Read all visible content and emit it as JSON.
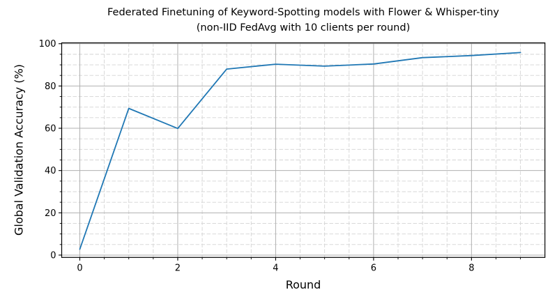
{
  "figure": {
    "title_line1": "Federated Finetuning of Keyword-Spotting models with Flower & Whisper-tiny",
    "title_line2": "(non-IID FedAvg with 10 clients per round)",
    "xlabel": "Round",
    "ylabel": "Global Validation Accuracy (%)"
  },
  "chart_data": {
    "type": "line",
    "title": "Federated Finetuning of Keyword-Spotting models with Flower & Whisper-tiny (non-IID FedAvg with 10 clients per round)",
    "xlabel": "Round",
    "ylabel": "Global Validation Accuracy (%)",
    "x": [
      0,
      1,
      2,
      3,
      4,
      5,
      6,
      7,
      8,
      9
    ],
    "series": [
      {
        "name": "Global validation accuracy",
        "values": [
          2.8,
          69.4,
          59.9,
          88.0,
          90.3,
          89.4,
          90.4,
          93.4,
          94.4,
          95.8
        ]
      }
    ],
    "xlim": [
      -0.37,
      9.5
    ],
    "ylim": [
      -1.1,
      100.4
    ],
    "x_major_ticks": [
      0,
      2,
      4,
      6,
      8
    ],
    "x_tick_labels": [
      "0",
      "2",
      "4",
      "6",
      "8"
    ],
    "y_major_ticks": [
      0,
      20,
      40,
      60,
      80,
      100
    ],
    "y_tick_labels": [
      "0",
      "20",
      "40",
      "60",
      "80",
      "100"
    ],
    "x_minor_step": 0.5,
    "y_minor_step": 5,
    "grid": "major-solid, minor-dashed",
    "legend": "none",
    "colors": {
      "line": "#1f77b4",
      "major_grid": "#b0b0b0",
      "minor_grid": "#d4d4d4",
      "spine": "#000000",
      "text": "#000000",
      "background": "#ffffff"
    }
  }
}
